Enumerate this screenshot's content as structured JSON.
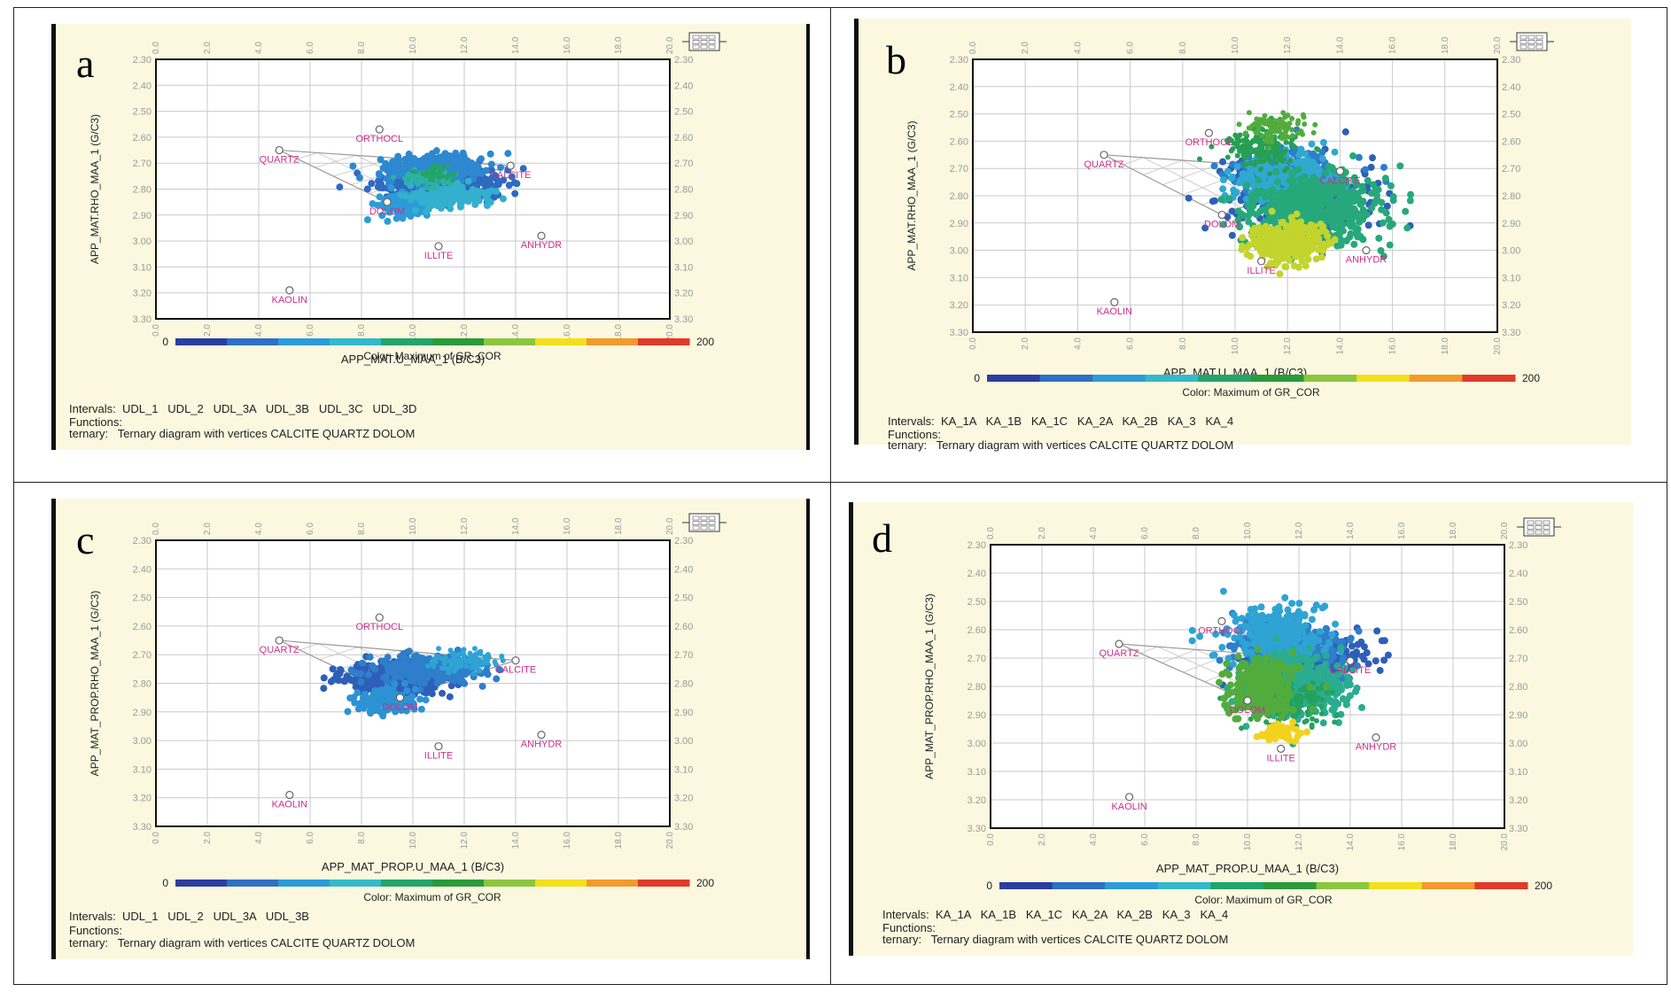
{
  "figure": {
    "panels": [
      {
        "id": "a",
        "letter": "a",
        "xlabel": "APP_MAT.U_MAA_1 (B/C3)",
        "ylabel": "APP_MAT.RHO_MAA_1 (G/C3)",
        "color_title": "Color: Maximum of GR_COR",
        "color_min": "0",
        "color_max": "200",
        "intervals_label": "Intervals:",
        "intervals": "UDL_1   UDL_2   UDL_3A   UDL_3B   UDL_3C   UDL_3D",
        "functions_label": "Functions:",
        "ternary_label": "ternary:",
        "ternary_text": "Ternary diagram with vertices CALCITE QUARTZ DOLOM"
      },
      {
        "id": "b",
        "letter": "b",
        "xlabel": "APP_MAT.U_MAA_1 (B/C3)",
        "ylabel": "APP_MAT.RHO_MAA_1 (G/C3)",
        "color_title": "Color: Maximum of GR_COR",
        "color_min": "0",
        "color_max": "200",
        "intervals_label": "Intervals:",
        "intervals": "KA_1A   KA_1B   KA_1C   KA_2A   KA_2B   KA_3   KA_4",
        "functions_label": "Functions:",
        "ternary_label": "ternary:",
        "ternary_text": "Ternary diagram with vertices CALCITE QUARTZ DOLOM"
      },
      {
        "id": "c",
        "letter": "c",
        "xlabel": "APP_MAT_PROP.U_MAA_1 (B/C3)",
        "ylabel": "APP_MAT_PROP.RHO_MAA_1 (G/C3)",
        "color_title": "Color: Maximum of GR_COR",
        "color_min": "0",
        "color_max": "200",
        "intervals_label": "Intervals:",
        "intervals": "UDL_1   UDL_2   UDL_3A   UDL_3B",
        "functions_label": "Functions:",
        "ternary_label": "ternary:",
        "ternary_text": "Ternary diagram with vertices CALCITE QUARTZ DOLOM"
      },
      {
        "id": "d",
        "letter": "d",
        "xlabel": "APP_MAT_PROP.U_MAA_1 (B/C3)",
        "ylabel": "APP_MAT_PROP.RHO_MAA_1 (G/C3)",
        "color_title": "Color: Maximum of GR_COR",
        "color_min": "0",
        "color_max": "200",
        "intervals_label": "Intervals:",
        "intervals": "KA_1A   KA_1B   KA_1C   KA_2A   KA_2B   KA_3   KA_4",
        "functions_label": "Functions:",
        "ternary_label": "ternary:",
        "ternary_text": "Ternary diagram with vertices CALCITE QUARTZ DOLOM"
      }
    ],
    "colors": {
      "panel_bg": "#fbf8df",
      "mineral_label": "#cc2f8c",
      "grid": "#c9c9c9",
      "ternary": "#9a9a9a",
      "colorbar": [
        "#2b3e9e",
        "#2f6fc4",
        "#2c9bd8",
        "#34b9c8",
        "#23a46a",
        "#2a9a3b",
        "#8cc63f",
        "#f2e01c",
        "#f29a2c",
        "#e03b2a"
      ]
    }
  },
  "chart_data": [
    {
      "panel": "a",
      "type": "scatter",
      "title": "",
      "xlabel": "APP_MAT.U_MAA_1 (B/C3)",
      "ylabel": "APP_MAT.RHO_MAA_1 (G/C3)",
      "xlim": [
        0,
        20
      ],
      "ylim": [
        2.3,
        3.3
      ],
      "x_ticks": [
        "0.0",
        "2.0",
        "4.0",
        "6.0",
        "8.0",
        "10.0",
        "12.0",
        "14.0",
        "16.0",
        "18.0",
        "20.0"
      ],
      "y_ticks": [
        "2.30",
        "2.40",
        "2.50",
        "2.60",
        "2.70",
        "2.80",
        "2.90",
        "3.00",
        "3.10",
        "3.20",
        "3.30"
      ],
      "color_variable": "GR_COR",
      "color_range": [
        0,
        200
      ],
      "minerals": [
        {
          "name": "QUARTZ",
          "x": 4.8,
          "y": 2.65
        },
        {
          "name": "ORTHOCL",
          "x": 8.7,
          "y": 2.57
        },
        {
          "name": "CALCITE",
          "x": 13.8,
          "y": 2.71
        },
        {
          "name": "DOLOM",
          "x": 9.0,
          "y": 2.85
        },
        {
          "name": "ANHYDR",
          "x": 15.0,
          "y": 2.98
        },
        {
          "name": "ILLITE",
          "x": 11.0,
          "y": 3.02
        },
        {
          "name": "KAOLIN",
          "x": 5.2,
          "y": 3.19
        }
      ],
      "ternary": [
        "QUARTZ",
        "CALCITE",
        "DOLOM"
      ],
      "clusters": [
        {
          "name": "UDL_1",
          "gr": 20,
          "cx": 11.0,
          "cy": 2.78,
          "sx": 2.0,
          "sy": 0.06,
          "n": 520,
          "radius": 4
        },
        {
          "name": "UDL_2",
          "gr": 35,
          "cx": 10.8,
          "cy": 2.72,
          "sx": 1.8,
          "sy": 0.05,
          "n": 320,
          "radius": 4
        },
        {
          "name": "UDL_3A",
          "gr": 45,
          "cx": 9.8,
          "cy": 2.86,
          "sx": 0.9,
          "sy": 0.04,
          "n": 160,
          "radius": 4
        },
        {
          "name": "UDL_3B",
          "gr": 60,
          "cx": 11.5,
          "cy": 2.83,
          "sx": 1.5,
          "sy": 0.04,
          "n": 160,
          "radius": 4
        },
        {
          "name": "UDL_3C",
          "gr": 75,
          "cx": 10.5,
          "cy": 2.76,
          "sx": 1.0,
          "sy": 0.03,
          "n": 60,
          "radius": 3
        },
        {
          "name": "UDL_3D",
          "gr": 90,
          "cx": 11.0,
          "cy": 2.74,
          "sx": 0.7,
          "sy": 0.03,
          "n": 30,
          "radius": 3
        }
      ]
    },
    {
      "panel": "b",
      "type": "scatter",
      "title": "",
      "xlabel": "APP_MAT.U_MAA_1 (B/C3)",
      "ylabel": "APP_MAT.RHO_MAA_1 (G/C3)",
      "xlim": [
        0,
        20
      ],
      "ylim": [
        2.3,
        3.3
      ],
      "x_ticks": [
        "0.0",
        "2.0",
        "4.0",
        "6.0",
        "8.0",
        "10.0",
        "12.0",
        "14.0",
        "16.0",
        "18.0",
        "20.0"
      ],
      "y_ticks": [
        "2.30",
        "2.40",
        "2.50",
        "2.60",
        "2.70",
        "2.80",
        "2.90",
        "3.00",
        "3.10",
        "3.20",
        "3.30"
      ],
      "color_variable": "GR_COR",
      "color_range": [
        0,
        200
      ],
      "minerals": [
        {
          "name": "QUARTZ",
          "x": 5.0,
          "y": 2.65
        },
        {
          "name": "ORTHOCL",
          "x": 9.0,
          "y": 2.57
        },
        {
          "name": "CALCITE",
          "x": 14.0,
          "y": 2.71
        },
        {
          "name": "DOLOM",
          "x": 9.5,
          "y": 2.87
        },
        {
          "name": "ANHYDR",
          "x": 15.0,
          "y": 3.0
        },
        {
          "name": "ILLITE",
          "x": 11.0,
          "y": 3.04
        },
        {
          "name": "KAOLIN",
          "x": 5.4,
          "y": 3.19
        }
      ],
      "ternary": [
        "QUARTZ",
        "CALCITE",
        "DOLOM"
      ],
      "clusters": [
        {
          "name": "KA_1A",
          "gr": 15,
          "cx": 12.5,
          "cy": 2.8,
          "sx": 2.5,
          "sy": 0.12,
          "n": 380,
          "radius": 4
        },
        {
          "name": "KA_1B",
          "gr": 30,
          "cx": 12.0,
          "cy": 2.72,
          "sx": 1.8,
          "sy": 0.08,
          "n": 260,
          "radius": 4
        },
        {
          "name": "KA_1C",
          "gr": 55,
          "cx": 12.0,
          "cy": 2.75,
          "sx": 1.8,
          "sy": 0.09,
          "n": 300,
          "radius": 4
        },
        {
          "name": "KA_2A",
          "gr": 85,
          "cx": 13.0,
          "cy": 2.85,
          "sx": 2.4,
          "sy": 0.12,
          "n": 620,
          "radius": 4
        },
        {
          "name": "KA_2B",
          "gr": 100,
          "cx": 11.0,
          "cy": 2.62,
          "sx": 1.3,
          "sy": 0.07,
          "n": 160,
          "radius": 3
        },
        {
          "name": "KA_3",
          "gr": 120,
          "cx": 11.5,
          "cy": 2.55,
          "sx": 1.0,
          "sy": 0.05,
          "n": 90,
          "radius": 3
        },
        {
          "name": "KA_4",
          "gr": 145,
          "cx": 12.0,
          "cy": 2.97,
          "sx": 1.2,
          "sy": 0.07,
          "n": 300,
          "radius": 4
        }
      ]
    },
    {
      "panel": "c",
      "type": "scatter",
      "title": "",
      "xlabel": "APP_MAT_PROP.U_MAA_1 (B/C3)",
      "ylabel": "APP_MAT_PROP.RHO_MAA_1 (G/C3)",
      "xlim": [
        0,
        20
      ],
      "ylim": [
        2.3,
        3.3
      ],
      "x_ticks": [
        "0.0",
        "2.0",
        "4.0",
        "6.0",
        "8.0",
        "10.0",
        "12.0",
        "14.0",
        "16.0",
        "18.0",
        "20.0"
      ],
      "y_ticks": [
        "2.30",
        "2.40",
        "2.50",
        "2.60",
        "2.70",
        "2.80",
        "2.90",
        "3.00",
        "3.10",
        "3.20",
        "3.30"
      ],
      "color_variable": "GR_COR",
      "color_range": [
        0,
        200
      ],
      "minerals": [
        {
          "name": "QUARTZ",
          "x": 4.8,
          "y": 2.65
        },
        {
          "name": "ORTHOCL",
          "x": 8.7,
          "y": 2.57
        },
        {
          "name": "CALCITE",
          "x": 14.0,
          "y": 2.72
        },
        {
          "name": "DOLOM",
          "x": 9.5,
          "y": 2.85
        },
        {
          "name": "ANHYDR",
          "x": 15.0,
          "y": 2.98
        },
        {
          "name": "ILLITE",
          "x": 11.0,
          "y": 3.02
        },
        {
          "name": "KAOLIN",
          "x": 5.2,
          "y": 3.19
        }
      ],
      "ternary": [
        "QUARTZ",
        "CALCITE",
        "DOLOM"
      ],
      "clusters": [
        {
          "name": "UDL_1",
          "gr": 15,
          "cx": 9.5,
          "cy": 2.78,
          "sx": 2.0,
          "sy": 0.05,
          "n": 400,
          "radius": 4
        },
        {
          "name": "UDL_2",
          "gr": 30,
          "cx": 10.5,
          "cy": 2.75,
          "sx": 1.8,
          "sy": 0.04,
          "n": 300,
          "radius": 4
        },
        {
          "name": "UDL_3A",
          "gr": 40,
          "cx": 9.0,
          "cy": 2.86,
          "sx": 1.0,
          "sy": 0.04,
          "n": 150,
          "radius": 4
        },
        {
          "name": "UDL_3B",
          "gr": 50,
          "cx": 12.0,
          "cy": 2.72,
          "sx": 1.2,
          "sy": 0.03,
          "n": 100,
          "radius": 3
        }
      ]
    },
    {
      "panel": "d",
      "type": "scatter",
      "title": "",
      "xlabel": "APP_MAT_PROP.U_MAA_1 (B/C3)",
      "ylabel": "APP_MAT_PROP.RHO_MAA_1 (G/C3)",
      "xlim": [
        0,
        20
      ],
      "ylim": [
        2.3,
        3.3
      ],
      "x_ticks": [
        "0.0",
        "2.0",
        "4.0",
        "6.0",
        "8.0",
        "10.0",
        "12.0",
        "14.0",
        "16.0",
        "18.0",
        "20.0"
      ],
      "y_ticks": [
        "2.30",
        "2.40",
        "2.50",
        "2.60",
        "2.70",
        "2.80",
        "2.90",
        "3.00",
        "3.10",
        "3.20",
        "3.30"
      ],
      "color_variable": "GR_COR",
      "color_range": [
        0,
        200
      ],
      "minerals": [
        {
          "name": "QUARTZ",
          "x": 5.0,
          "y": 2.65
        },
        {
          "name": "ORTHOCL",
          "x": 9.0,
          "y": 2.57
        },
        {
          "name": "CALCITE",
          "x": 14.0,
          "y": 2.71
        },
        {
          "name": "DOLOM",
          "x": 10.0,
          "y": 2.85
        },
        {
          "name": "ANHYDR",
          "x": 15.0,
          "y": 2.98
        },
        {
          "name": "ILLITE",
          "x": 11.3,
          "y": 3.02
        },
        {
          "name": "KAOLIN",
          "x": 5.4,
          "y": 3.19
        }
      ],
      "ternary": [
        "QUARTZ",
        "CALCITE",
        "DOLOM"
      ],
      "clusters": [
        {
          "name": "KA_1A",
          "gr": 15,
          "cx": 12.5,
          "cy": 2.7,
          "sx": 2.2,
          "sy": 0.08,
          "n": 260,
          "radius": 4
        },
        {
          "name": "KA_1B",
          "gr": 30,
          "cx": 11.5,
          "cy": 2.66,
          "sx": 2.0,
          "sy": 0.09,
          "n": 300,
          "radius": 4
        },
        {
          "name": "KA_1C",
          "gr": 50,
          "cx": 11.0,
          "cy": 2.62,
          "sx": 1.8,
          "sy": 0.09,
          "n": 300,
          "radius": 4
        },
        {
          "name": "KA_2A",
          "gr": 80,
          "cx": 12.0,
          "cy": 2.8,
          "sx": 1.8,
          "sy": 0.1,
          "n": 420,
          "radius": 4
        },
        {
          "name": "KA_2B",
          "gr": 95,
          "cx": 11.5,
          "cy": 2.85,
          "sx": 1.5,
          "sy": 0.08,
          "n": 180,
          "radius": 3
        },
        {
          "name": "KA_3",
          "gr": 120,
          "cx": 10.5,
          "cy": 2.8,
          "sx": 1.2,
          "sy": 0.1,
          "n": 260,
          "radius": 4
        },
        {
          "name": "KA_4",
          "gr": 160,
          "cx": 11.3,
          "cy": 2.96,
          "sx": 0.6,
          "sy": 0.03,
          "n": 60,
          "radius": 4
        }
      ]
    }
  ]
}
